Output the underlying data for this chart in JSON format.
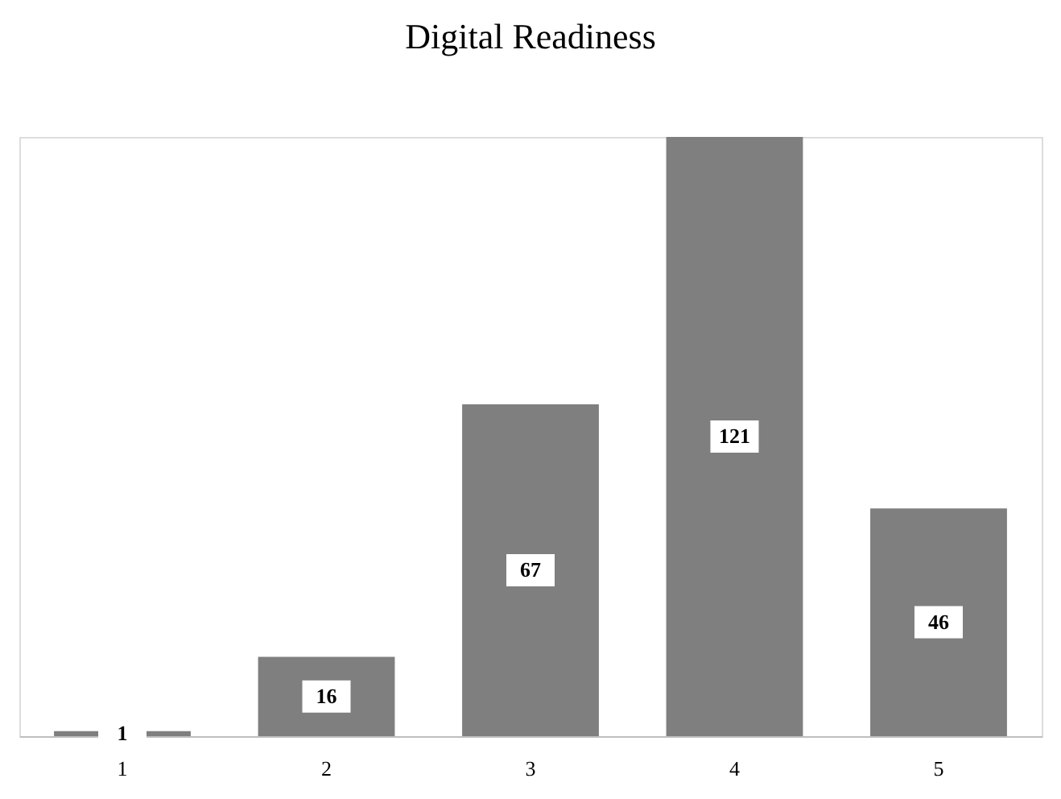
{
  "chart_data": {
    "type": "bar",
    "title": "Digital Readiness",
    "categories": [
      "1",
      "2",
      "3",
      "4",
      "5"
    ],
    "values": [
      1,
      16,
      67,
      121,
      46
    ],
    "color": "#7f7f7f",
    "data_labels": true
  }
}
